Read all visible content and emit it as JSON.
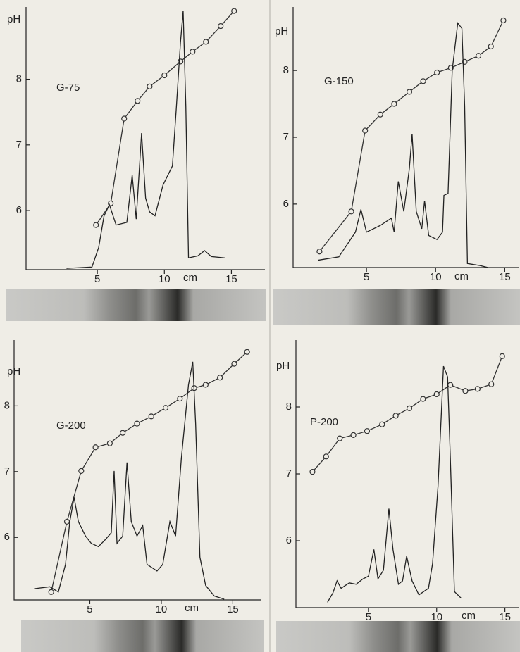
{
  "chart_data": [
    {
      "type": "line",
      "title": "G-75",
      "xlabel": "cm",
      "ylabel": "pH",
      "xlim": [
        0,
        17.5
      ],
      "ylim": [
        5.1,
        9.1
      ],
      "xticks": [
        5,
        10,
        15
      ],
      "yticks": [
        6,
        7,
        8
      ],
      "series": [
        {
          "color": "#333333",
          "marker": "circle",
          "x": [
            4.9,
            6.0,
            7.0,
            8.0,
            8.9,
            10.0,
            11.2,
            12.1,
            13.1,
            14.2,
            15.2
          ],
          "values": [
            5.78,
            6.11,
            7.4,
            7.67,
            7.89,
            8.06,
            8.27,
            8.42,
            8.57,
            8.81,
            9.04
          ]
        },
        {
          "color": "#222222",
          "marker": "none",
          "x": [
            2.7,
            4.6,
            5.1,
            5.5,
            5.9,
            6.4,
            7.2,
            7.6,
            7.9,
            8.3,
            8.6,
            8.9,
            9.3,
            9.9,
            10.6,
            10.9,
            11.2,
            11.4,
            11.6,
            11.8,
            12.5,
            13.0,
            13.5,
            14.5
          ],
          "values": [
            5.12,
            5.14,
            5.44,
            5.92,
            6.09,
            5.78,
            5.82,
            6.54,
            5.87,
            7.18,
            6.19,
            5.98,
            5.92,
            6.39,
            6.68,
            7.59,
            8.56,
            9.04,
            7.59,
            5.28,
            5.31,
            5.39,
            5.3,
            5.28
          ]
        }
      ]
    },
    {
      "type": "line",
      "title": "G-150",
      "xlabel": "cm",
      "ylabel": "pH",
      "xlim": [
        0,
        16
      ],
      "ylim": [
        5.05,
        8.95
      ],
      "xticks": [
        5,
        10,
        15
      ],
      "yticks": [
        6,
        7,
        8
      ],
      "series": [
        {
          "color": "#333333",
          "marker": "circle",
          "x": [
            1.6,
            3.9,
            4.9,
            6.0,
            7.0,
            8.1,
            9.1,
            10.1,
            11.1,
            12.1,
            13.1,
            14.0,
            14.9
          ],
          "values": [
            5.29,
            5.89,
            7.1,
            7.34,
            7.5,
            7.68,
            7.84,
            7.97,
            8.04,
            8.13,
            8.22,
            8.36,
            8.75
          ]
        },
        {
          "color": "#222222",
          "marker": "none",
          "x": [
            1.5,
            3.0,
            4.2,
            4.6,
            5.0,
            6.0,
            6.8,
            7.0,
            7.3,
            7.7,
            8.1,
            8.3,
            8.6,
            9.0,
            9.2,
            9.5,
            10.1,
            10.5,
            10.6,
            10.9,
            11.2,
            11.6,
            11.9,
            12.1,
            12.3,
            13.2,
            13.8
          ],
          "values": [
            5.16,
            5.21,
            5.58,
            5.92,
            5.58,
            5.68,
            5.79,
            5.58,
            6.34,
            5.89,
            6.53,
            7.05,
            5.89,
            5.63,
            6.05,
            5.53,
            5.47,
            5.58,
            6.13,
            6.16,
            8.0,
            8.71,
            8.63,
            7.47,
            5.11,
            5.08,
            5.05
          ]
        }
      ]
    },
    {
      "type": "line",
      "title": "G-200",
      "xlabel": "cm",
      "ylabel": "pH",
      "xlim": [
        0,
        17
      ],
      "ylim": [
        5.05,
        9.0
      ],
      "xticks": [
        5,
        10,
        15
      ],
      "yticks": [
        6,
        7,
        8
      ],
      "series": [
        {
          "color": "#333333",
          "marker": "circle",
          "x": [
            2.3,
            3.4,
            4.4,
            5.4,
            6.4,
            7.3,
            8.3,
            9.3,
            10.3,
            11.3,
            12.3,
            13.1,
            14.1,
            15.1,
            16.0
          ],
          "values": [
            5.17,
            6.24,
            7.01,
            7.37,
            7.43,
            7.59,
            7.73,
            7.84,
            7.97,
            8.11,
            8.27,
            8.32,
            8.43,
            8.64,
            8.82
          ]
        },
        {
          "color": "#222222",
          "marker": "none",
          "x": [
            1.1,
            2.2,
            2.8,
            3.3,
            3.6,
            3.9,
            4.2,
            4.7,
            5.1,
            5.6,
            6.1,
            6.5,
            6.7,
            6.9,
            7.3,
            7.6,
            7.9,
            8.3,
            8.7,
            9.0,
            9.7,
            10.1,
            10.6,
            11.0,
            11.4,
            11.9,
            12.2,
            12.4,
            12.7,
            13.1,
            13.7,
            14.4
          ],
          "values": [
            5.22,
            5.25,
            5.17,
            5.59,
            6.24,
            6.61,
            6.24,
            6.02,
            5.91,
            5.86,
            5.97,
            6.07,
            7.01,
            5.91,
            6.02,
            7.14,
            6.24,
            6.02,
            6.18,
            5.59,
            5.49,
            5.59,
            6.24,
            6.02,
            7.2,
            8.32,
            8.67,
            7.73,
            5.7,
            5.27,
            5.11,
            5.06
          ]
        }
      ]
    },
    {
      "type": "line",
      "title": "P-200",
      "xlabel": "cm",
      "ylabel": "pH",
      "xlim": [
        0,
        16
      ],
      "ylim": [
        5.0,
        9.0
      ],
      "xticks": [
        5,
        10,
        15
      ],
      "yticks": [
        6,
        7,
        8
      ],
      "series": [
        {
          "color": "#333333",
          "marker": "circle",
          "x": [
            0.9,
            1.9,
            2.9,
            3.9,
            4.9,
            6.0,
            7.0,
            8.0,
            9.0,
            10.0,
            11.0,
            12.1,
            13.0,
            14.0,
            14.8
          ],
          "values": [
            7.03,
            7.26,
            7.53,
            7.58,
            7.64,
            7.74,
            7.87,
            7.98,
            8.12,
            8.19,
            8.33,
            8.24,
            8.27,
            8.34,
            8.76
          ]
        },
        {
          "color": "#222222",
          "marker": "none",
          "x": [
            2.0,
            2.4,
            2.7,
            3.0,
            3.6,
            4.1,
            4.6,
            5.0,
            5.4,
            5.7,
            6.1,
            6.5,
            6.8,
            7.2,
            7.5,
            7.8,
            8.2,
            8.7,
            9.4,
            9.7,
            10.1,
            10.5,
            10.8,
            11.0,
            11.3,
            11.8
          ],
          "values": [
            5.08,
            5.22,
            5.4,
            5.29,
            5.37,
            5.35,
            5.43,
            5.47,
            5.87,
            5.43,
            5.56,
            6.48,
            5.87,
            5.35,
            5.4,
            5.77,
            5.4,
            5.19,
            5.29,
            5.66,
            6.82,
            8.61,
            8.45,
            7.24,
            5.24,
            5.14
          ]
        }
      ]
    }
  ]
}
